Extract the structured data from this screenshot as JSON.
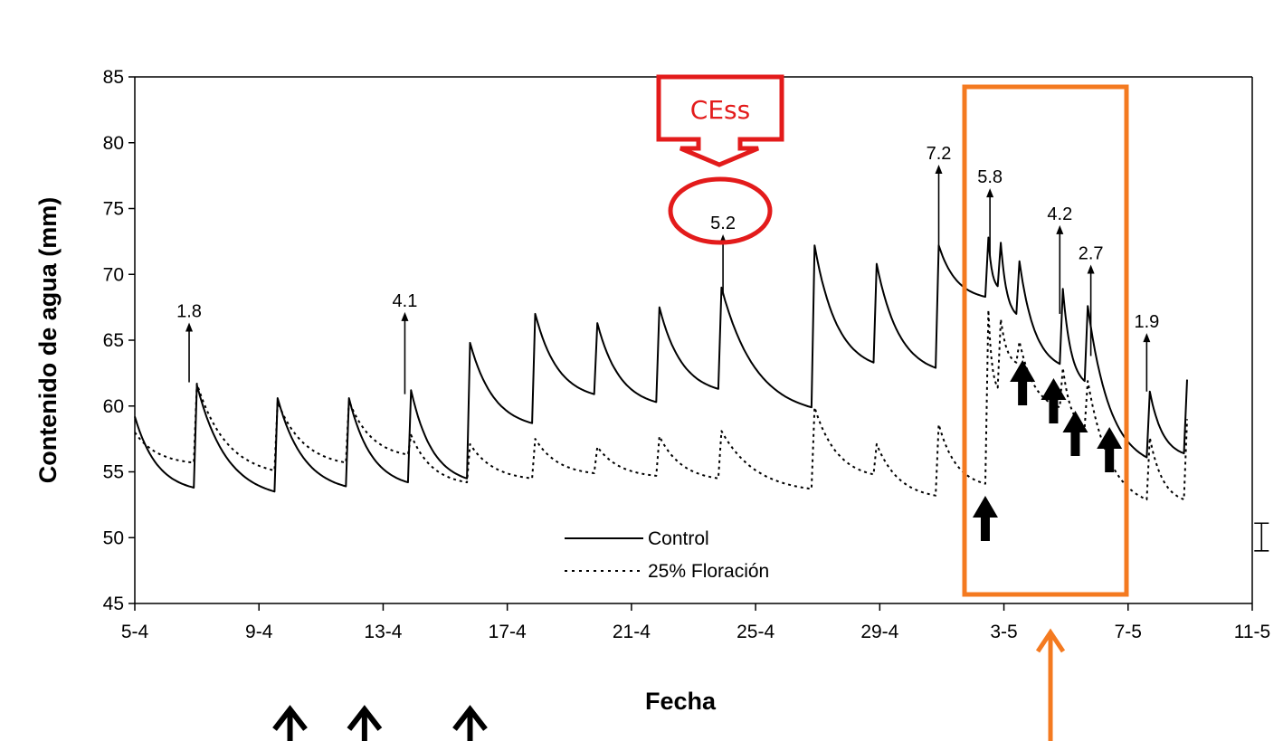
{
  "chart_data": {
    "type": "line",
    "xlabel": "Fecha",
    "ylabel": "Contenido de agua (mm)",
    "ylim": [
      45,
      85
    ],
    "yticks": [
      45,
      50,
      55,
      60,
      65,
      70,
      75,
      80,
      85
    ],
    "xlim_days": [
      0,
      36
    ],
    "xtick_labels": [
      "5-4",
      "9-4",
      "13-4",
      "17-4",
      "21-4",
      "25-4",
      "29-4",
      "3-5",
      "7-5",
      "11-5"
    ],
    "legend": [
      "Control",
      "25% Floración"
    ],
    "legend_placement": "bottom-center",
    "grid": false,
    "series": [
      {
        "name": "Control",
        "style": "solid",
        "color": "#000000",
        "peaks": [
          [
            0,
            59.2
          ],
          [
            2.0,
            61.6
          ],
          [
            4.6,
            60.6
          ],
          [
            6.9,
            60.6
          ],
          [
            8.9,
            61.2
          ],
          [
            10.8,
            64.8
          ],
          [
            12.9,
            67.0
          ],
          [
            14.9,
            66.3
          ],
          [
            16.9,
            67.5
          ],
          [
            18.9,
            69.0
          ],
          [
            21.9,
            72.2
          ],
          [
            23.9,
            70.8
          ],
          [
            25.9,
            72.2
          ],
          [
            27.5,
            72.8
          ],
          [
            27.9,
            72.4
          ],
          [
            28.5,
            71.0
          ],
          [
            29.9,
            68.9
          ],
          [
            30.7,
            67.6
          ],
          [
            32.7,
            61.1
          ],
          [
            33.9,
            62.0
          ]
        ],
        "troughs": [
          [
            1.9,
            53.8
          ],
          [
            4.5,
            53.5
          ],
          [
            6.8,
            53.9
          ],
          [
            8.8,
            54.2
          ],
          [
            10.7,
            54.5
          ],
          [
            12.8,
            58.7
          ],
          [
            14.8,
            60.9
          ],
          [
            16.8,
            60.3
          ],
          [
            18.8,
            61.3
          ],
          [
            21.8,
            59.9
          ],
          [
            23.8,
            63.3
          ],
          [
            25.8,
            62.9
          ],
          [
            27.4,
            68.3
          ],
          [
            27.8,
            69.1
          ],
          [
            28.4,
            67.0
          ],
          [
            29.8,
            63.2
          ],
          [
            30.6,
            61.9
          ],
          [
            32.6,
            56.1
          ],
          [
            33.8,
            56.4
          ]
        ]
      },
      {
        "name": "25% Floración",
        "style": "dotted",
        "color": "#000000",
        "peaks": [
          [
            0,
            58.0
          ],
          [
            2.0,
            61.7
          ],
          [
            4.6,
            60.3
          ],
          [
            6.9,
            60.4
          ],
          [
            8.9,
            57.8
          ],
          [
            10.8,
            57.1
          ],
          [
            12.9,
            57.5
          ],
          [
            14.9,
            56.9
          ],
          [
            16.9,
            57.7
          ],
          [
            18.9,
            58.1
          ],
          [
            21.9,
            59.9
          ],
          [
            23.9,
            57.1
          ],
          [
            25.9,
            58.6
          ],
          [
            27.5,
            67.3
          ],
          [
            27.9,
            66.6
          ],
          [
            28.5,
            64.9
          ],
          [
            29.9,
            62.9
          ],
          [
            30.7,
            61.9
          ],
          [
            32.7,
            57.6
          ],
          [
            33.9,
            59.0
          ]
        ],
        "troughs": [
          [
            1.9,
            55.7
          ],
          [
            4.5,
            55.1
          ],
          [
            6.8,
            55.7
          ],
          [
            8.8,
            56.3
          ],
          [
            10.7,
            54.2
          ],
          [
            12.8,
            54.5
          ],
          [
            14.8,
            54.9
          ],
          [
            16.8,
            54.7
          ],
          [
            18.8,
            54.5
          ],
          [
            21.8,
            53.7
          ],
          [
            23.8,
            54.8
          ],
          [
            25.8,
            53.2
          ],
          [
            27.4,
            54.1
          ],
          [
            27.8,
            61.4
          ],
          [
            28.4,
            63.3
          ],
          [
            29.8,
            59.9
          ],
          [
            30.6,
            58.4
          ],
          [
            32.6,
            52.9
          ],
          [
            33.8,
            52.9
          ]
        ]
      }
    ],
    "error_bar": {
      "x": 36.3,
      "ylow": 49.0,
      "yhigh": 51.1
    },
    "annotations": [
      {
        "text": "1.8",
        "x": 1.75,
        "y_base": 61.8,
        "y_tip": 66.2
      },
      {
        "text": "4.1",
        "x": 8.7,
        "y_base": 60.9,
        "y_tip": 67.0
      },
      {
        "text": "5.2",
        "x": 18.95,
        "y_base": 68.4,
        "y_tip": 72.9
      },
      {
        "text": "7.2",
        "x": 25.9,
        "y_base": 72.2,
        "y_tip": 78.2
      },
      {
        "text": "5.8",
        "x": 27.55,
        "y_base": 71.5,
        "y_tip": 76.4
      },
      {
        "text": "4.2",
        "x": 29.8,
        "y_base": 67.0,
        "y_tip": 73.6
      },
      {
        "text": "2.7",
        "x": 30.8,
        "y_base": 63.8,
        "y_tip": 70.6
      },
      {
        "text": "1.9",
        "x": 32.6,
        "y_base": 61.1,
        "y_tip": 65.4
      }
    ],
    "callout": {
      "text": "CEss",
      "target": "5.2",
      "color": "#e31b1b"
    },
    "highlight_box_color": "#f47a20",
    "irrigation_arrows_x": [
      5.0,
      7.4,
      10.8
    ],
    "inplot_bold_arrows_x": [
      27.4,
      28.6,
      29.6,
      30.3,
      31.4
    ],
    "highlight_arrow_x": 29.5
  }
}
